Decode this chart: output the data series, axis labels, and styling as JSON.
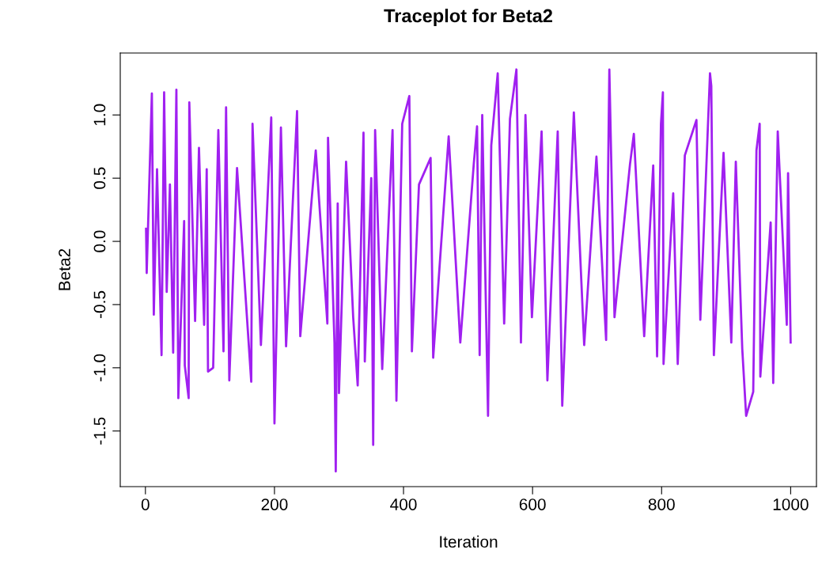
{
  "chart_data": {
    "type": "line",
    "title": "Traceplot for Beta2",
    "xlabel": "Iteration",
    "ylabel": "Beta2",
    "x": [
      1,
      2,
      10,
      13,
      18,
      25,
      29,
      33,
      38,
      43,
      48,
      51,
      60,
      61,
      67,
      68,
      77,
      83,
      91,
      95,
      97,
      105,
      113,
      121,
      125,
      130,
      142,
      164,
      166,
      179,
      195,
      200,
      210,
      218,
      235,
      240,
      264,
      282,
      283,
      293,
      295,
      298,
      300,
      311,
      322,
      329,
      338,
      340,
      350,
      353,
      356,
      367,
      383,
      389,
      398,
      409,
      413,
      424,
      442,
      446,
      470,
      488,
      509,
      514,
      518,
      522,
      531,
      536,
      546,
      556,
      565,
      575,
      582,
      589,
      599,
      614,
      623,
      639,
      646,
      664,
      680,
      699,
      714,
      719,
      727,
      751,
      757,
      773,
      787,
      793,
      799,
      802,
      803,
      818,
      825,
      836,
      854,
      860,
      875,
      877,
      881,
      896,
      908,
      915,
      925,
      931,
      942,
      947,
      952,
      953,
      969,
      973,
      980,
      994,
      996,
      1000
    ],
    "series": [
      {
        "color": "#a020f0",
        "values": [
          0.1,
          -0.25,
          1.17,
          -0.58,
          0.57,
          -0.9,
          1.18,
          -0.4,
          0.45,
          -0.88,
          1.2,
          -1.24,
          0.16,
          -0.98,
          -1.24,
          1.1,
          -0.63,
          0.74,
          -0.66,
          0.57,
          -1.03,
          -1.0,
          0.88,
          -0.87,
          1.06,
          -1.1,
          0.58,
          -1.11,
          0.93,
          -0.82,
          0.98,
          -1.44,
          0.9,
          -0.83,
          1.03,
          -0.75,
          0.72,
          -0.65,
          0.82,
          -0.8,
          -1.82,
          0.3,
          -1.2,
          0.63,
          -0.6,
          -1.14,
          0.86,
          -0.95,
          0.5,
          -1.61,
          0.88,
          -1.01,
          0.88,
          -1.26,
          0.93,
          1.15,
          -0.87,
          0.45,
          0.66,
          -0.92,
          0.83,
          -0.8,
          0.62,
          0.91,
          -0.9,
          1.0,
          -1.38,
          0.76,
          1.33,
          -0.65,
          0.97,
          1.36,
          -0.8,
          1.0,
          -0.6,
          0.87,
          -1.1,
          0.87,
          -1.3,
          1.02,
          -0.82,
          0.67,
          -0.78,
          1.36,
          -0.6,
          0.61,
          0.85,
          -0.75,
          0.6,
          -0.91,
          0.93,
          1.18,
          -0.97,
          0.38,
          -0.97,
          0.68,
          0.96,
          -0.62,
          1.33,
          1.23,
          -0.9,
          0.7,
          -0.8,
          0.63,
          -0.85,
          -1.38,
          -1.19,
          0.72,
          0.93,
          -1.07,
          0.15,
          -1.12,
          0.87,
          -0.66,
          0.54,
          -0.8
        ]
      }
    ],
    "xlim": [
      -39,
      1040
    ],
    "xticks": [
      0,
      200,
      400,
      600,
      800,
      1000
    ],
    "ylim": [
      -1.94,
      1.49
    ],
    "yticks": [
      -1.5,
      {
        "value": -1,
        "label": "-1.0"
      },
      -0.5,
      {
        "value": 0,
        "label": "0.0"
      },
      0.5,
      {
        "value": 1,
        "label": "1.0"
      }
    ],
    "grid": false,
    "marker": "none",
    "line_style": "solid"
  }
}
